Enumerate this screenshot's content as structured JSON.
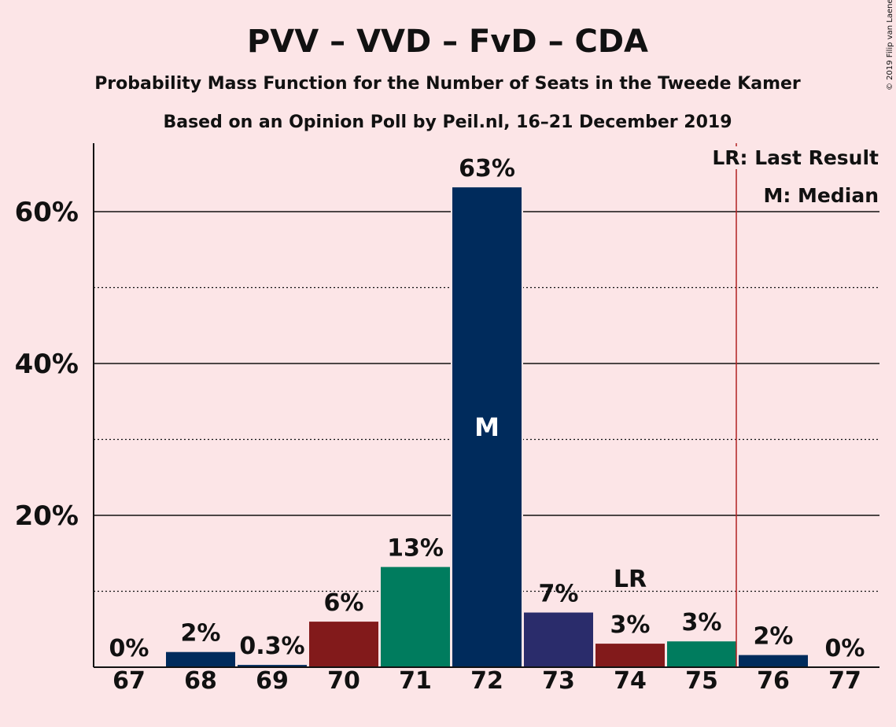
{
  "chart_data": {
    "type": "bar",
    "title": "PVV – VVD – FvD – CDA",
    "subtitle": "Probability Mass Function for the Number of Seats in the Tweede Kamer",
    "subtitle2": "Based on an Opinion Poll by Peil.nl, 16–21 December 2019",
    "copyright": "© 2019 Filip van Laenen",
    "categories": [
      "67",
      "68",
      "69",
      "70",
      "71",
      "72",
      "73",
      "74",
      "75",
      "76",
      "77"
    ],
    "values": [
      0,
      2.0,
      0.3,
      6.0,
      13.2,
      63.2,
      7.2,
      3.1,
      3.4,
      1.6,
      0
    ],
    "labels": [
      "0%",
      "2%",
      "0.3%",
      "6%",
      "13%",
      "63%",
      "7%",
      "3%",
      "3%",
      "2%",
      "0%"
    ],
    "colors": [
      "#002b5c",
      "#002b5c",
      "#002b5c",
      "#821a1b",
      "#007c5e",
      "#002b5c",
      "#2a2c6b",
      "#821a1b",
      "#007c5e",
      "#002b5c",
      "#002b5c"
    ],
    "yticks": [
      {
        "value": 20,
        "label": "20%"
      },
      {
        "value": 40,
        "label": "40%"
      },
      {
        "value": 60,
        "label": "60%"
      }
    ],
    "minor_gridlines": [
      10,
      30,
      50
    ],
    "ylim": [
      0,
      69
    ],
    "median_index": 5,
    "median_mark": "M",
    "last_result_index": 7,
    "last_result_mark": "LR",
    "last_result_line_after_index": 9,
    "last_result_line_color": "#b22222",
    "legend": [
      "LR: Last Result",
      "M: Median"
    ],
    "legend_placement": "top-right",
    "grid": true
  }
}
